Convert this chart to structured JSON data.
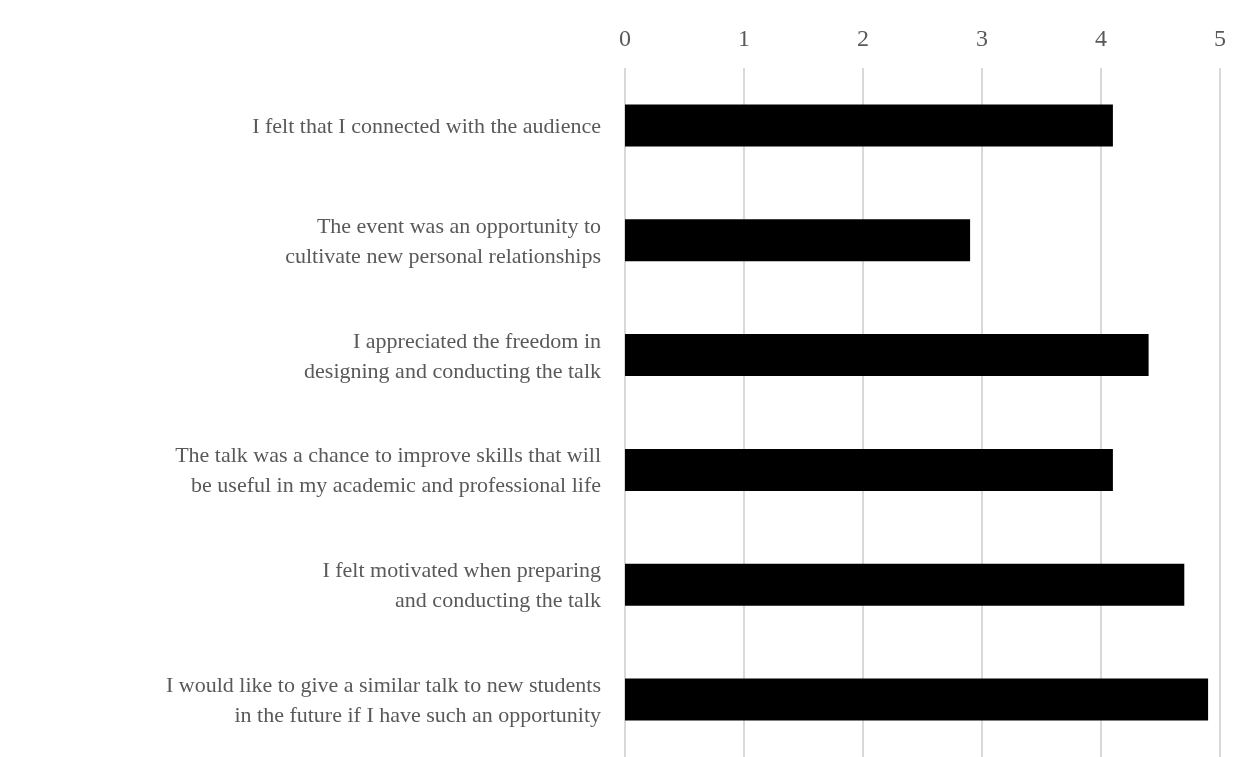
{
  "chart_data": {
    "type": "bar",
    "orientation": "horizontal",
    "categories": [
      "I felt that I connected with the audience",
      "The event was an opportunity to\ncultivate new personal relationships",
      "I appreciated the freedom in\ndesigning and conducting the talk",
      "The talk was a chance to improve skills that will\nbe useful in my academic and professional life",
      "I felt motivated when preparing\nand conducting the talk",
      "I would like to give a similar talk to new students\nin the future if I have such an opportunity"
    ],
    "values": [
      4.1,
      2.9,
      4.4,
      4.1,
      4.7,
      4.9
    ],
    "color": "#000000",
    "xlim": [
      0,
      5
    ],
    "xticks": [
      0,
      1,
      2,
      3,
      4,
      5
    ],
    "grid": "x"
  }
}
